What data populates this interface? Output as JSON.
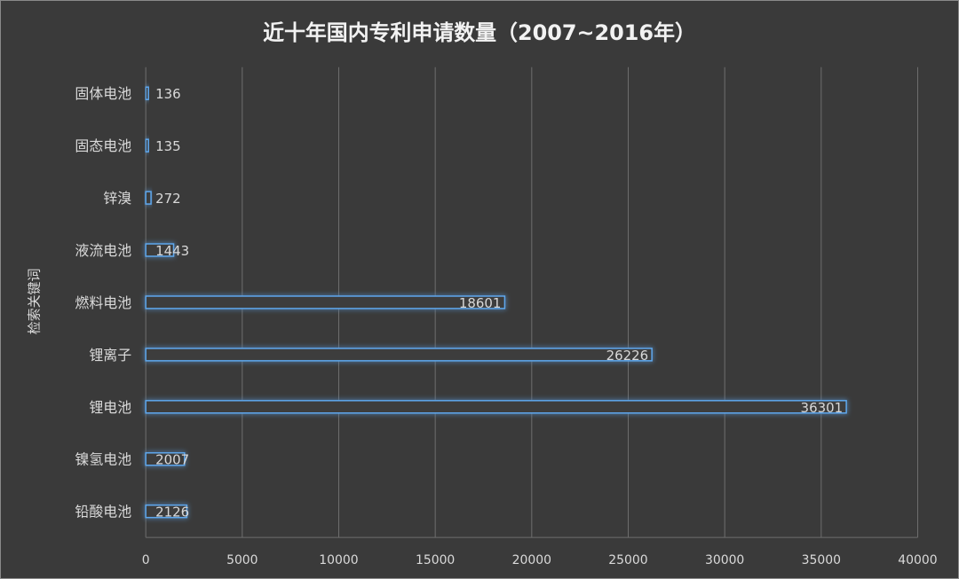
{
  "chart_data": {
    "type": "bar",
    "orientation": "horizontal",
    "title": "近十年国内专利申请数量（2007~2016年）",
    "ylabel": "检索关键词",
    "xlabel": "",
    "categories": [
      "固体电池",
      "固态电池",
      "锌溴",
      "液流电池",
      "燃料电池",
      "锂离子",
      "锂电池",
      "镍氢电池",
      "铅酸电池"
    ],
    "values": [
      136,
      135,
      272,
      1443,
      18601,
      26226,
      36301,
      2007,
      2126
    ],
    "data_labels": [
      "136",
      "135",
      "272",
      "1443",
      "18601",
      "26226",
      "36301",
      "2007",
      "2126"
    ],
    "xlim": [
      0,
      40000
    ],
    "xticks": [
      "0",
      "5000",
      "10000",
      "15000",
      "20000",
      "25000",
      "30000",
      "35000",
      "40000"
    ],
    "grid": true,
    "legend": "none",
    "colors": {
      "background": "#3a3a3a",
      "grid": "#6e6e6e",
      "bar_fill": "#3c3c3c",
      "bar_stroke": "#5fa8ee",
      "glow": "#3d8fe0",
      "text": "#d9d9d9",
      "title": "#f2f2f2"
    }
  }
}
